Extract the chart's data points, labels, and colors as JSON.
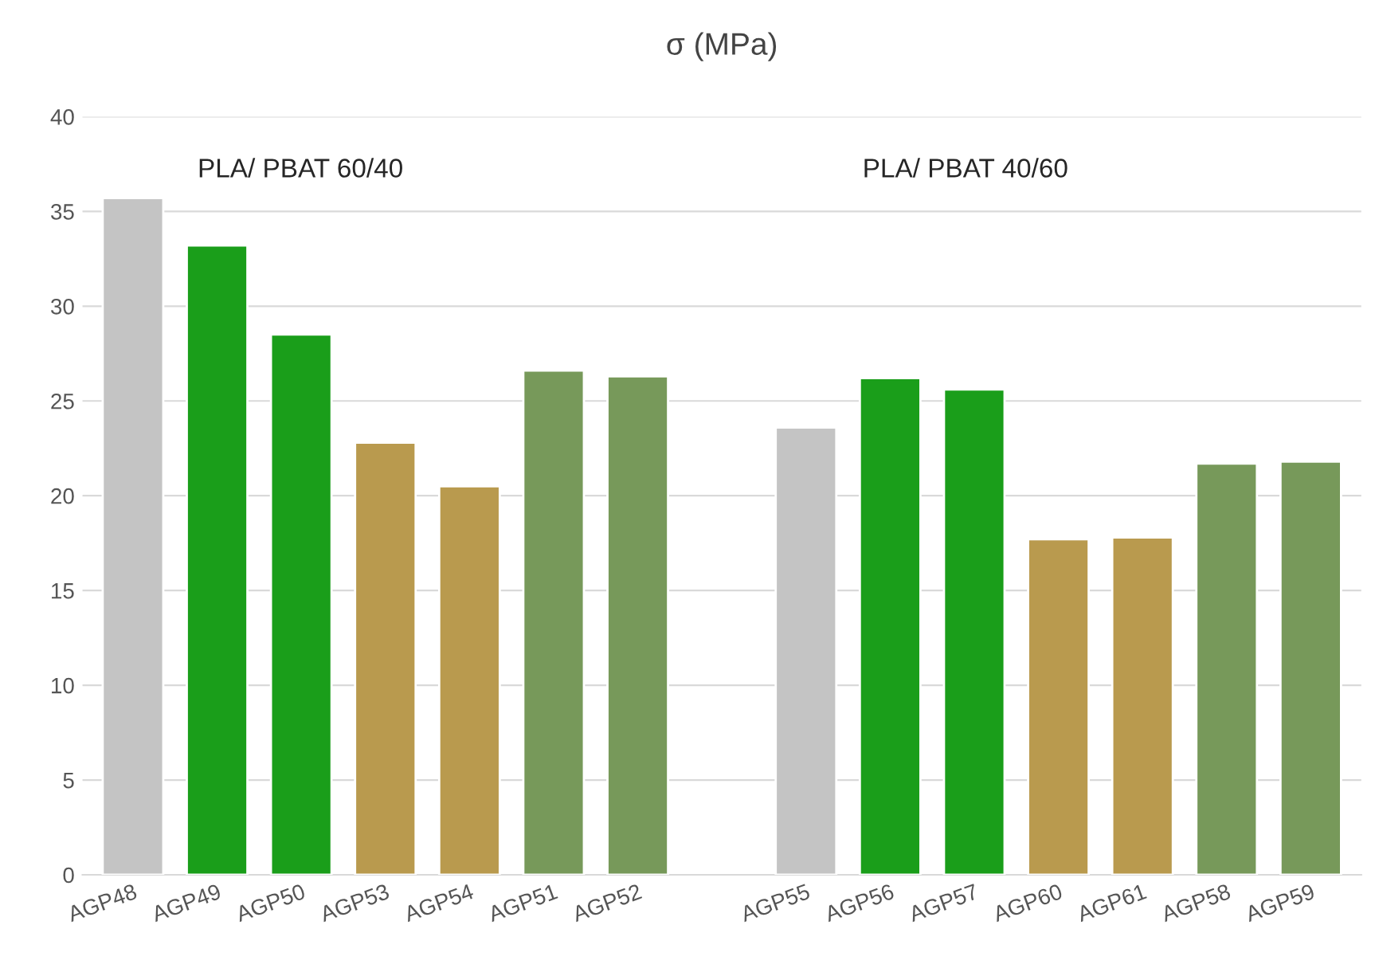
{
  "chart_data": {
    "type": "bar",
    "title": "σ (MPa)",
    "categories": [
      "AGP48",
      "AGP49",
      "AGP50",
      "AGP53",
      "AGP54",
      "AGP51",
      "AGP52",
      null,
      "AGP55",
      "AGP56",
      "AGP57",
      "AGP60",
      "AGP61",
      "AGP58",
      "AGP59"
    ],
    "values": [
      35.7,
      33.2,
      28.5,
      22.8,
      20.5,
      26.6,
      26.3,
      null,
      23.6,
      26.2,
      25.6,
      17.7,
      17.8,
      21.7,
      21.8
    ],
    "colors": [
      "#c4c4c4",
      "#1a9e1a",
      "#1a9e1a",
      "#b99a4e",
      "#b99a4e",
      "#77995a",
      "#77995a",
      "#ffffff",
      "#c4c4c4",
      "#1a9e1a",
      "#1a9e1a",
      "#b99a4e",
      "#b99a4e",
      "#77995a",
      "#77995a"
    ],
    "annotations": [
      "PLA/ PBAT 60/40",
      "PLA/ PBAT 40/60"
    ],
    "ylim": [
      0,
      40
    ],
    "yticks": [
      0,
      5,
      10,
      15,
      20,
      25,
      30,
      35,
      40
    ],
    "grid": "y",
    "legend": false
  }
}
